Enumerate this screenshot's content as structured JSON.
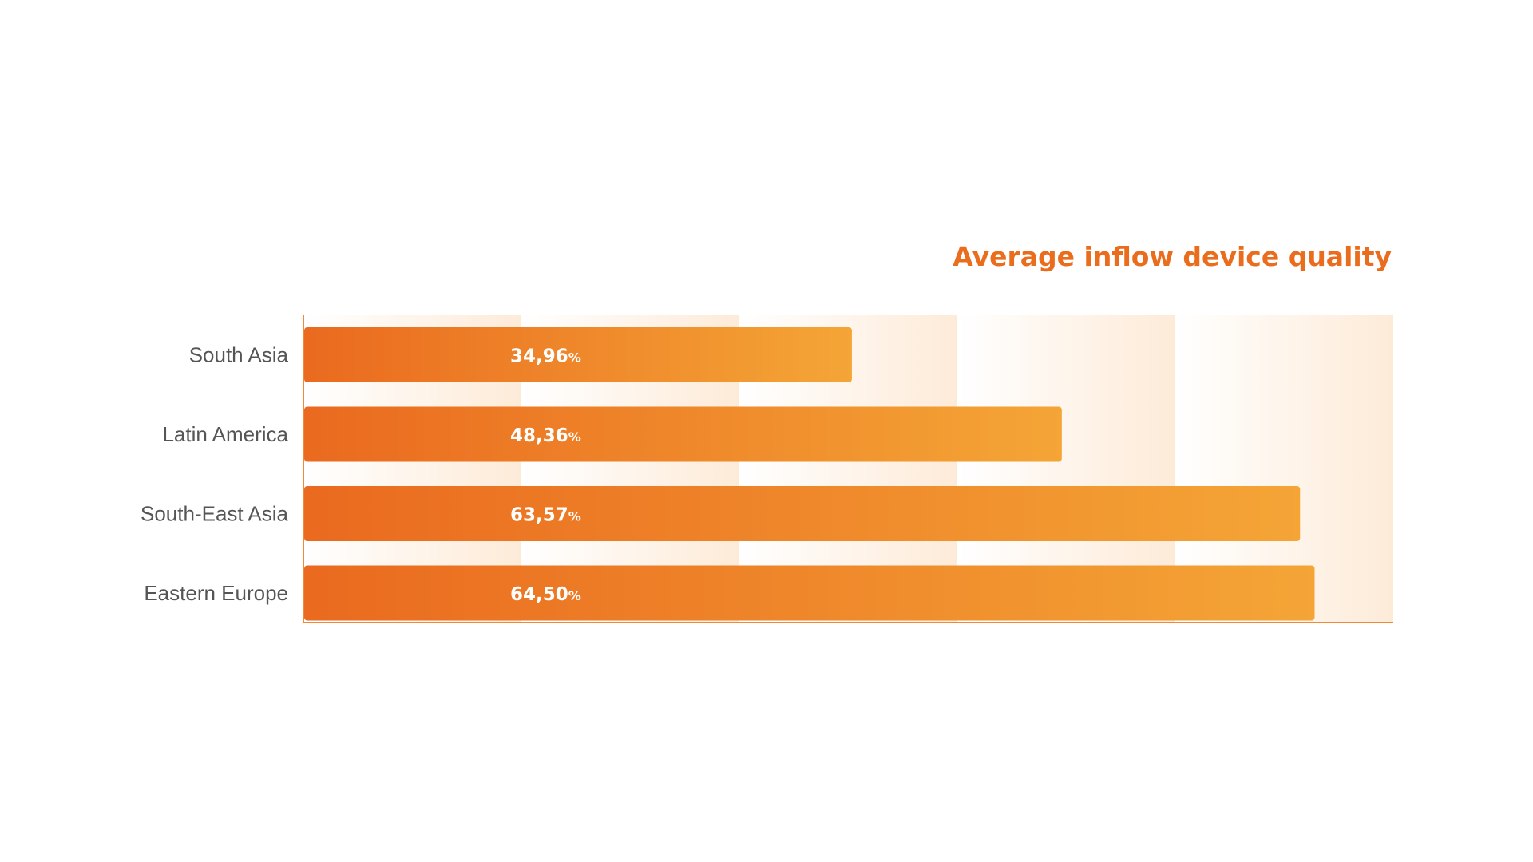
{
  "chart_data": {
    "type": "bar",
    "orientation": "horizontal",
    "title": "Average inflow device quality",
    "categories": [
      "South Asia",
      "Latin America",
      "South-East Asia",
      "Eastern Europe"
    ],
    "values": [
      34.96,
      48.36,
      63.57,
      64.5
    ],
    "value_labels": [
      "34,96",
      "48,36",
      "63,57",
      "64,50"
    ],
    "unit": "%",
    "xlim": [
      0,
      70
    ],
    "grid": false,
    "legend": "none"
  },
  "colors": {
    "title": "#EA6D1E",
    "bar_start": "#EA6A1F",
    "bar_end": "#F4A536",
    "axis": "#F08A3A",
    "band": "#FDEBD8",
    "label": "#555555",
    "value_text": "#FFFFFF"
  }
}
